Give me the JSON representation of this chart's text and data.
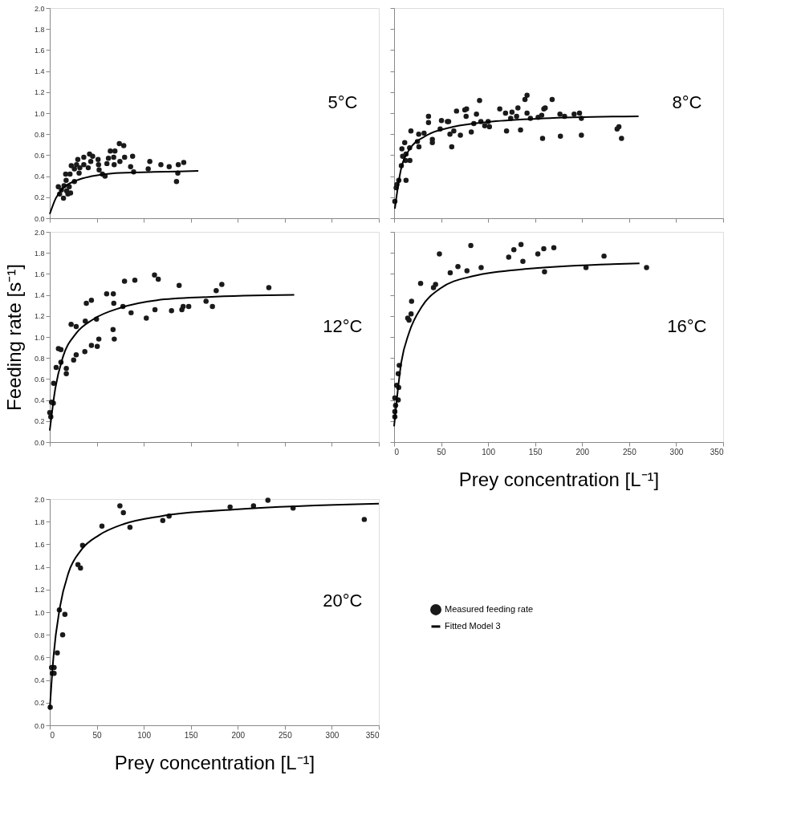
{
  "chart_data": [
    {
      "type": "scatter",
      "annotations": [
        "5°C"
      ],
      "xlim": [
        0,
        350
      ],
      "xticks": [
        0,
        50,
        100,
        150,
        200,
        250,
        300,
        350
      ],
      "ylim": [
        0,
        2.0
      ],
      "yticks": [
        {
          "value": 0,
          "label": "0.0"
        },
        {
          "value": 0.2,
          "label": "0.2"
        },
        {
          "value": 0.4,
          "label": "0.4"
        },
        {
          "value": 0.6,
          "label": "0.6"
        },
        {
          "value": 0.8,
          "label": "0.8"
        },
        {
          "value": 1.0,
          "label": "1.0"
        },
        {
          "value": 1.2,
          "label": "1.2"
        },
        {
          "value": 1.4,
          "label": "1.4"
        },
        {
          "value": 1.6,
          "label": "1.6"
        },
        {
          "value": 1.8,
          "label": "1.8"
        },
        {
          "value": 2.0,
          "label": "2.0"
        }
      ],
      "tick_labels": "y",
      "series": [
        {
          "marker": "circle",
          "color": "#1a1a1a",
          "x": [
            9.1,
            10.5,
            12.4,
            14.6,
            15.2,
            16.9,
            17.4,
            18,
            19.3,
            20.7,
            22.1,
            21.5,
            22.9,
            26.2,
            26.2,
            28.5,
            29.8,
            31.2,
            32,
            36.2,
            36.2,
            40.9,
            42.3,
            43.6,
            45.6,
            51.4,
            51.9,
            52.5,
            56,
            58.8,
            60.8,
            62.4,
            64.4,
            68,
            68.5,
            69.3,
            74,
            74.6,
            78.7,
            79.6,
            86,
            88.1,
            89.2,
            104.7,
            106.4,
            118.2,
            127,
            134.8,
            136.2,
            136.7,
            142.5
          ],
          "values": [
            0.3,
            0.23,
            0.27,
            0.19,
            0.31,
            0.42,
            0.36,
            0.26,
            0.23,
            0.3,
            0.24,
            0.42,
            0.5,
            0.35,
            0.47,
            0.51,
            0.56,
            0.43,
            0.48,
            0.58,
            0.51,
            0.48,
            0.61,
            0.54,
            0.59,
            0.56,
            0.51,
            0.46,
            0.42,
            0.4,
            0.52,
            0.57,
            0.64,
            0.58,
            0.51,
            0.64,
            0.71,
            0.54,
            0.69,
            0.58,
            0.49,
            0.59,
            0.44,
            0.47,
            0.54,
            0.51,
            0.49,
            0.35,
            0.43,
            0.51,
            0.53
          ]
        },
        {
          "type": "line",
          "color": "#000000",
          "x": [
            0,
            6.4,
            14.6,
            28.5,
            45,
            70,
            111,
            158
          ],
          "values": [
            0.04,
            0.19,
            0.29,
            0.36,
            0.4,
            0.43,
            0.44,
            0.45
          ]
        }
      ]
    },
    {
      "type": "scatter",
      "annotations": [
        "8°C"
      ],
      "xlim": [
        0,
        350
      ],
      "xticks": [
        0,
        50,
        100,
        150,
        200,
        250,
        300,
        350
      ],
      "ylim": [
        0,
        2.0
      ],
      "yticks": [
        0,
        0.2,
        0.4,
        0.6,
        0.8,
        1.0,
        1.2,
        1.4,
        1.6,
        1.8,
        2.0
      ],
      "tick_labels": false,
      "series": [
        {
          "marker": "circle",
          "color": "#1a1a1a",
          "x": [
            0.8,
            2.2,
            3,
            5,
            12.7,
            7.7,
            9.1,
            8.3,
            11.3,
            12.7,
            12.1,
            16.5,
            16.8,
            17.9,
            24.8,
            26.2,
            26.4,
            31.9,
            36.6,
            36.6,
            40.7,
            40.7,
            49,
            50.4,
            56.7,
            58,
            59.4,
            61.3,
            63.5,
            66.4,
            70.5,
            75.2,
            77.1,
            76.6,
            82.1,
            84.8,
            87.6,
            90.9,
            92.3,
            96.4,
            100,
            101.4,
            112.4,
            118.5,
            119.6,
            124,
            125.4,
            130.3,
            131.7,
            134.5,
            139.2,
            141.4,
            141.4,
            145,
            153.2,
            157,
            157.9,
            159.3,
            160.7,
            168.1,
            176.4,
            181.3,
            176.9,
            191.5,
            197.2,
            199.2,
            199.2,
            237.2,
            239.1,
            241.9
          ],
          "values": [
            0.16,
            0.29,
            0.32,
            0.36,
            0.36,
            0.5,
            0.59,
            0.66,
            0.72,
            0.61,
            0.55,
            0.67,
            0.55,
            0.83,
            0.73,
            0.8,
            0.68,
            0.81,
            0.91,
            0.97,
            0.75,
            0.72,
            0.85,
            0.93,
            0.92,
            0.92,
            0.8,
            0.68,
            0.83,
            1.02,
            0.79,
            1.03,
            1.04,
            0.97,
            0.82,
            0.9,
            0.99,
            1.12,
            0.92,
            0.88,
            0.92,
            0.87,
            1.04,
            1.0,
            0.83,
            0.95,
            1.01,
            0.97,
            1.05,
            0.84,
            1.13,
            1.17,
            1.0,
            0.95,
            0.96,
            0.98,
            0.76,
            1.04,
            1.05,
            1.13,
            0.99,
            0.97,
            0.78,
            0.99,
            1.0,
            0.95,
            0.79,
            0.85,
            0.87,
            0.76
          ]
        },
        {
          "type": "line",
          "color": "#000000",
          "x": [
            0.8,
            6.3,
            16,
            35,
            63,
            104,
            159,
            260
          ],
          "values": [
            0.09,
            0.42,
            0.65,
            0.79,
            0.87,
            0.92,
            0.95,
            0.97
          ]
        }
      ]
    },
    {
      "type": "scatter",
      "annotations": [
        "12°C"
      ],
      "ylabel": "Feeding rate [s⁻¹]",
      "xlim": [
        0,
        350
      ],
      "xticks": [
        0,
        50,
        100,
        150,
        200,
        250,
        300,
        350
      ],
      "ylim": [
        0,
        2.0
      ],
      "yticks": [
        {
          "value": 0,
          "label": "0.0"
        },
        {
          "value": 0.2,
          "label": "0.2"
        },
        {
          "value": 0.4,
          "label": "0.4"
        },
        {
          "value": 0.6,
          "label": "0.6"
        },
        {
          "value": 0.8,
          "label": "0.8"
        },
        {
          "value": 1.0,
          "label": "1.0"
        },
        {
          "value": 1.2,
          "label": "1.2"
        },
        {
          "value": 1.4,
          "label": "1.4"
        },
        {
          "value": 1.6,
          "label": "1.6"
        },
        {
          "value": 1.8,
          "label": "1.8"
        },
        {
          "value": 2.0,
          "label": "2.0"
        }
      ],
      "tick_labels": "y",
      "series": [
        {
          "marker": "circle",
          "color": "#1a1a1a",
          "x": [
            0,
            1.1,
            1.9,
            3.8,
            4.1,
            6.8,
            9.2,
            11.9,
            11.9,
            17.6,
            17.6,
            22.7,
            25.4,
            28.1,
            28.1,
            37.8,
            37.3,
            38.9,
            44.3,
            44.3,
            49.7,
            50.5,
            52.2,
            60.5,
            67.6,
            68.1,
            67.3,
            68.6,
            77.8,
            79.5,
            86.5,
            90.5,
            102.7,
            111.4,
            111.9,
            115.4,
            129.5,
            137.6,
            140.5,
            141.9,
            147.8,
            166.2,
            173,
            177,
            183,
            233
          ],
          "values": [
            0.28,
            0.24,
            0.38,
            0.37,
            0.56,
            0.71,
            0.89,
            0.88,
            0.76,
            0.7,
            0.65,
            1.12,
            0.78,
            1.1,
            0.83,
            1.15,
            0.86,
            1.32,
            1.35,
            0.92,
            1.17,
            0.91,
            0.98,
            1.41,
            1.41,
            1.32,
            1.07,
            0.98,
            1.29,
            1.53,
            1.23,
            1.54,
            1.18,
            1.59,
            1.26,
            1.55,
            1.25,
            1.49,
            1.26,
            1.29,
            1.29,
            1.34,
            1.29,
            1.44,
            1.5,
            1.47
          ]
        },
        {
          "type": "line",
          "color": "#000000",
          "x": [
            0,
            5.9,
            14,
            27.6,
            46.5,
            76,
            114,
            168,
            260
          ],
          "values": [
            0.11,
            0.51,
            0.81,
            1.03,
            1.17,
            1.28,
            1.35,
            1.38,
            1.4
          ]
        }
      ]
    },
    {
      "type": "scatter",
      "annotations": [
        "16°C"
      ],
      "xlabel": "Prey concentration [L⁻¹]",
      "xlim": [
        0,
        350
      ],
      "xticks": [
        0,
        50,
        100,
        150,
        200,
        250,
        300,
        350
      ],
      "ylim": [
        0,
        2.0
      ],
      "yticks": [
        0,
        0.2,
        0.4,
        0.6,
        0.8,
        1.0,
        1.2,
        1.4,
        1.6,
        1.8,
        2.0
      ],
      "tick_labels": "x",
      "series": [
        {
          "marker": "circle",
          "color": "#1a1a1a",
          "x": [
            0.8,
            0.8,
            1.6,
            0.8,
            2.7,
            4.4,
            4.9,
            4.4,
            5.5,
            14.5,
            15.9,
            18.1,
            18.6,
            28.2,
            41.9,
            44.1,
            48.2,
            59.7,
            67.9,
            77.5,
            81.6,
            92.6,
            121.9,
            127.4,
            135,
            137,
            152.9,
            159.2,
            160,
            169.9,
            204.1,
            223.3,
            268.5
          ],
          "values": [
            0.24,
            0.29,
            0.35,
            0.42,
            0.54,
            0.4,
            0.52,
            0.65,
            0.73,
            1.18,
            1.16,
            1.22,
            1.34,
            1.51,
            1.47,
            1.5,
            1.79,
            1.61,
            1.67,
            1.63,
            1.87,
            1.66,
            1.76,
            1.83,
            1.88,
            1.72,
            1.79,
            1.84,
            1.62,
            1.85,
            1.66,
            1.77,
            1.66
          ]
        },
        {
          "type": "line",
          "color": "#000000",
          "x": [
            0,
            7.7,
            15.9,
            29.6,
            48.8,
            84.4,
            144.7,
            261
          ],
          "values": [
            0.15,
            0.76,
            1.04,
            1.29,
            1.46,
            1.58,
            1.65,
            1.7
          ]
        }
      ]
    },
    {
      "type": "scatter",
      "annotations": [
        "20°C"
      ],
      "xlabel": "Prey concentration [L⁻¹]",
      "xlim": [
        0,
        350
      ],
      "xticks": [
        0,
        50,
        100,
        150,
        200,
        250,
        300,
        350
      ],
      "ylim": [
        0,
        2.0
      ],
      "yticks": [
        {
          "value": 0,
          "label": "0.0"
        },
        {
          "value": 0.2,
          "label": "0.2"
        },
        {
          "value": 0.4,
          "label": "0.4"
        },
        {
          "value": 0.6,
          "label": "0.6"
        },
        {
          "value": 0.8,
          "label": "0.8"
        },
        {
          "value": 1.0,
          "label": "1.0"
        },
        {
          "value": 1.2,
          "label": "1.2"
        },
        {
          "value": 1.4,
          "label": "1.4"
        },
        {
          "value": 1.6,
          "label": "1.6"
        },
        {
          "value": 1.8,
          "label": "1.8"
        },
        {
          "value": 2.0,
          "label": "2.0"
        }
      ],
      "legend": "right",
      "series": [
        {
          "name": "Measured feeding rate",
          "marker": "circle",
          "color": "#1a1a1a",
          "x": [
            0.5,
            1.9,
            2.7,
            4.6,
            4.6,
            8,
            10.2,
            13.7,
            16.1,
            30,
            32.7,
            34.9,
            55.5,
            74.6,
            78.3,
            85.3,
            120.2,
            126.9,
            191.8,
            216.7,
            232,
            258.8,
            334.5
          ],
          "values": [
            0.16,
            0.51,
            0.46,
            0.46,
            0.51,
            0.64,
            1.02,
            0.8,
            0.98,
            1.42,
            1.39,
            1.59,
            1.76,
            1.94,
            1.88,
            1.75,
            1.81,
            1.85,
            1.93,
            1.94,
            1.99,
            1.92,
            1.82
          ]
        },
        {
          "name": "Fitted Model 3",
          "type": "line",
          "color": "#000000",
          "x": [
            0,
            4,
            10.7,
            20,
            33.5,
            52.3,
            79,
            119,
            200,
            350
          ],
          "values": [
            0.14,
            0.61,
            1.04,
            1.35,
            1.55,
            1.68,
            1.78,
            1.85,
            1.91,
            1.96
          ]
        }
      ]
    }
  ]
}
